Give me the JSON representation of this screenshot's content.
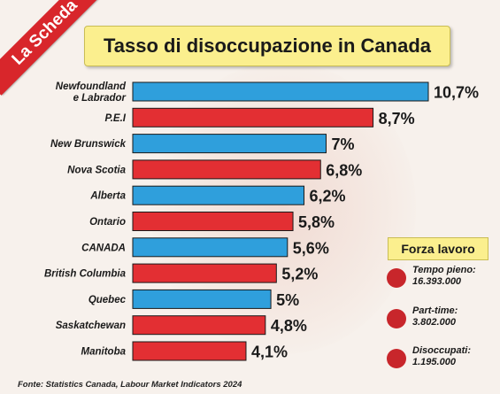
{
  "ribbon": "La Scheda",
  "title": "Tasso di disoccupazione in Canada",
  "source": "Fonte: Statistics Canada, Labour Market Indicators 2024",
  "colors": {
    "blue": "#2f9fdc",
    "red": "#e32f33",
    "legend_dot": "#c8262b"
  },
  "chart_data": {
    "type": "bar",
    "orientation": "horizontal",
    "title": "Tasso di disoccupazione in Canada",
    "categories": [
      [
        "Newfoundland",
        "e Labrador"
      ],
      "P.E.I",
      "New Brunswick",
      "Nova Scotia",
      "Alberta",
      "Ontario",
      "CANADA",
      "British Columbia",
      "Quebec",
      "Saskatchewan",
      "Manitoba"
    ],
    "values": [
      10.7,
      8.7,
      7,
      6.8,
      6.2,
      5.8,
      5.6,
      5.2,
      5,
      4.8,
      4.1
    ],
    "value_labels": [
      "10,7%",
      "8,7%",
      "7%",
      "6,8%",
      "6,2%",
      "5,8%",
      "5,6%",
      "5,2%",
      "5%",
      "4,8%",
      "4,1%"
    ],
    "bar_colors": [
      "blue",
      "red",
      "blue",
      "red",
      "blue",
      "red",
      "blue",
      "red",
      "blue",
      "red",
      "red"
    ],
    "xlim": [
      0,
      10.7
    ],
    "grid": false,
    "legend_position": "right"
  },
  "legend": {
    "title": "Forza lavoro",
    "items": [
      {
        "label": "Tempo pieno:",
        "value": "16.393.000"
      },
      {
        "label": "Part-time:",
        "value": "3.802.000"
      },
      {
        "label": "Disoccupati:",
        "value": "1.195.000"
      }
    ]
  }
}
